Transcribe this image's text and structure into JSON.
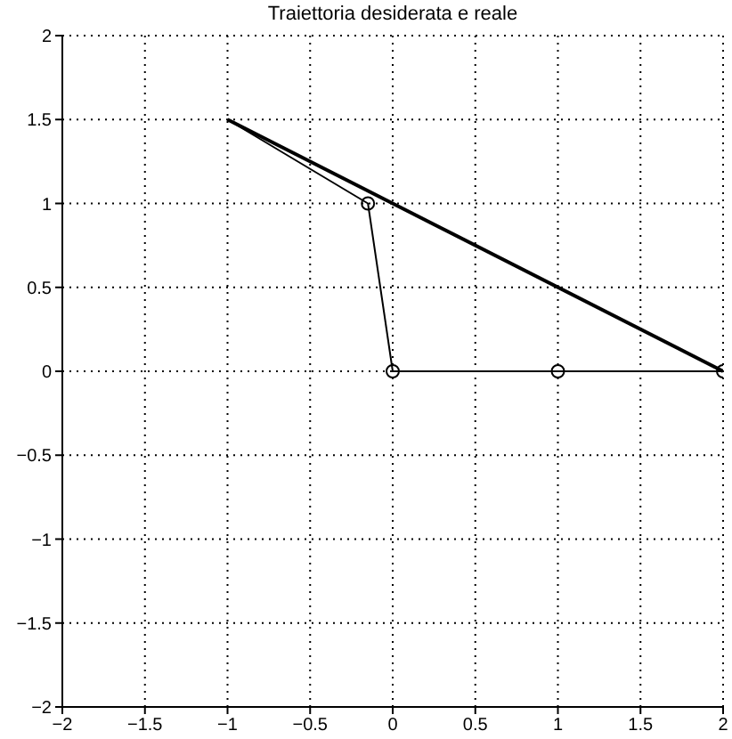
{
  "chart_data": {
    "type": "line",
    "title": "Traiettoria desiderata e reale",
    "xlim": [
      -2,
      2
    ],
    "xticks": [
      -2,
      -1.5,
      -1,
      -0.5,
      0,
      0.5,
      1,
      1.5,
      2
    ],
    "ylim": [
      -2,
      2
    ],
    "yticks": [
      -2,
      -1.5,
      -1,
      -0.5,
      0,
      0.5,
      1,
      1.5,
      2
    ],
    "grid": true,
    "series": [
      {
        "color": "#000000",
        "x": [
          -1,
          2
        ],
        "values": [
          1.5,
          0
        ],
        "marker": "none"
      },
      {
        "color": "#000000",
        "x": [
          -1,
          -0.15,
          0,
          1,
          2
        ],
        "values": [
          1.5,
          1,
          0,
          0,
          0
        ],
        "marker": "none"
      },
      {
        "type": "scatter",
        "color": "#000000",
        "x": [
          -0.15,
          0,
          1,
          2
        ],
        "values": [
          1,
          0,
          0,
          0
        ],
        "marker": "circle"
      }
    ]
  }
}
